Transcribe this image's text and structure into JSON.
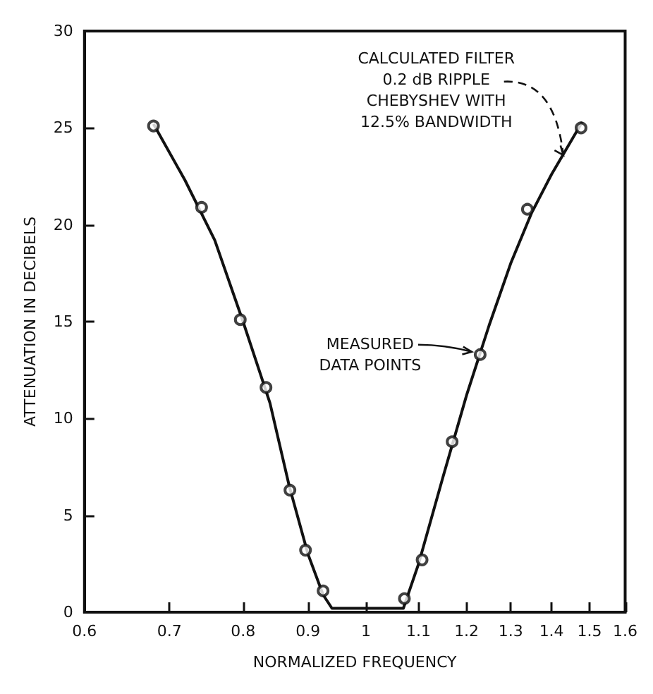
{
  "chart_data": {
    "type": "line",
    "xlabel": "NORMALIZED FREQUENCY",
    "ylabel": "ATTENUATION IN DECIBELS",
    "log": "x",
    "xlim": [
      0.6,
      1.6
    ],
    "xticks": [
      0.6,
      0.7,
      0.8,
      0.9,
      {
        "value": 1,
        "label": "1"
      },
      1.1,
      1.2,
      1.3,
      1.4,
      1.5,
      1.6
    ],
    "ylim": [
      0,
      30
    ],
    "yticks": [
      0,
      5,
      10,
      15,
      20,
      25,
      30
    ],
    "grid": false,
    "series": [
      {
        "color": "#111111",
        "marker": "none",
        "line_style": "solid",
        "x": [
          0.68,
          0.72,
          0.76,
          0.8,
          0.84,
          0.87,
          0.9,
          0.925,
          0.94,
          1.07,
          1.1,
          1.15,
          1.2,
          1.25,
          1.3,
          1.35,
          1.4,
          1.48
        ],
        "values": [
          25.2,
          22.3,
          19.2,
          15.0,
          10.8,
          6.5,
          3.0,
          0.9,
          0.2,
          0.2,
          2.5,
          7.0,
          11.2,
          14.8,
          18.0,
          20.6,
          22.6,
          25.3
        ]
      },
      {
        "type": "scatter",
        "color": "#111111",
        "marker": "circle",
        "x": [
          0.68,
          0.742,
          0.796,
          0.834,
          0.871,
          0.896,
          0.925,
          1.072,
          1.107,
          1.169,
          1.23,
          1.34,
          1.477
        ],
        "values": [
          25.1,
          20.9,
          15.1,
          11.6,
          6.3,
          3.2,
          1.1,
          0.7,
          2.7,
          8.8,
          13.3,
          20.8,
          25.0
        ]
      }
    ],
    "annotations": [
      {
        "text": "CALCULATED FILTER\n0.2 dB RIPPLE\nCHEBYSHEV WITH\n12.5% BANDWIDTH",
        "x": 1.43,
        "y": 23.6
      },
      {
        "text": "MEASURED\nDATA POINTS",
        "x": 1.23,
        "y": 13.3
      }
    ]
  }
}
